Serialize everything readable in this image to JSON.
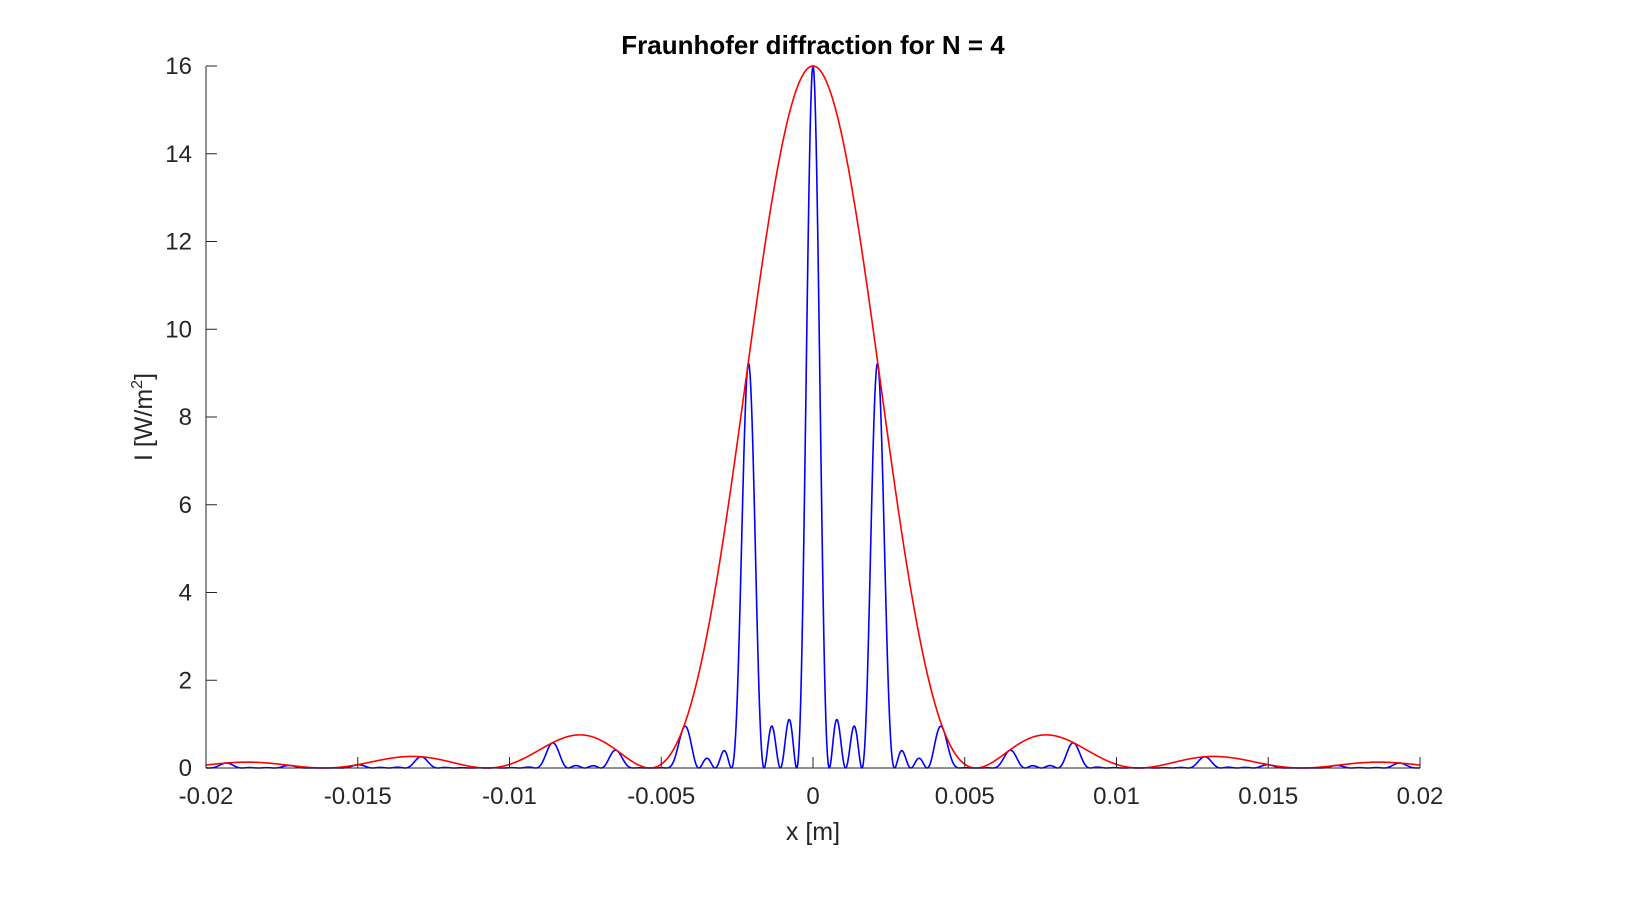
{
  "chart_data": {
    "type": "line",
    "title": "Fraunhofer diffraction for N = 4",
    "xlabel": "x [m]",
    "ylabel": "I [W/m2]",
    "ylabel_parts": {
      "base": "I [W/m",
      "superscript": "2",
      "close": "]"
    },
    "xlim": [
      -0.02,
      0.02
    ],
    "ylim": [
      0,
      16
    ],
    "xticks": [
      -0.02,
      -0.015,
      -0.01,
      -0.005,
      0,
      0.005,
      0.01,
      0.015,
      0.02
    ],
    "xtick_labels": [
      "-0.02",
      "-0.015",
      "-0.01",
      "-0.005",
      "0",
      "0.005",
      "0.01",
      "0.015",
      "0.02"
    ],
    "yticks": [
      0,
      2,
      4,
      6,
      8,
      10,
      12,
      14,
      16
    ],
    "ytick_labels": [
      "0",
      "2",
      "4",
      "6",
      "8",
      "10",
      "12",
      "14",
      "16"
    ],
    "grid": false,
    "legend": false,
    "curve_params": {
      "N": 4,
      "I0": 1,
      "envelope_first_zero_x": 0.00537,
      "principal_max_spacing_x": 0.00215
    },
    "series": [
      {
        "color": "#0000ff",
        "role": "interference pattern",
        "key_points": {
          "x": [
            -0.0086,
            -0.0064,
            -0.0043,
            -0.00215,
            0,
            0.00215,
            0.0043,
            0.0064,
            0.0086,
            0.013,
            0.0194
          ],
          "y": [
            0.6,
            0.4,
            0.97,
            9.2,
            16,
            9.2,
            0.97,
            0.4,
            0.6,
            0.26,
            0.12
          ]
        }
      },
      {
        "color": "#ff0000",
        "role": "envelope",
        "key_points": {
          "x": [
            -0.0187,
            -0.0131,
            -0.0077,
            -0.00537,
            0,
            0.00537,
            0.0077,
            0.0131,
            0.0187
          ],
          "y": [
            0.16,
            0.28,
            0.76,
            0,
            16,
            0,
            0.76,
            0.28,
            0.16
          ]
        }
      }
    ]
  }
}
